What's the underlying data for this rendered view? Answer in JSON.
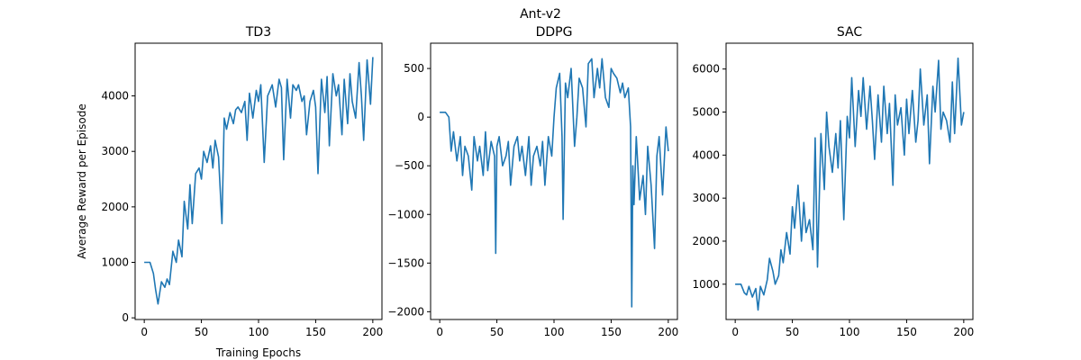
{
  "figure": {
    "suptitle": "Ant-v2"
  },
  "chart_data": [
    {
      "type": "line",
      "title": "TD3",
      "xlabel": "Training Epochs",
      "ylabel": "Average Reward per Episode",
      "xlim": [
        -8,
        208
      ],
      "ylim": [
        -30,
        4950
      ],
      "xticks": [
        0,
        50,
        100,
        150,
        200
      ],
      "yticks": [
        0,
        1000,
        2000,
        3000,
        4000
      ],
      "color": "#1f77b4",
      "series": [
        {
          "name": "TD3",
          "x": [
            0,
            5,
            8,
            10,
            12,
            15,
            18,
            20,
            22,
            25,
            28,
            30,
            33,
            35,
            38,
            40,
            42,
            45,
            48,
            50,
            52,
            55,
            58,
            60,
            62,
            65,
            68,
            70,
            72,
            75,
            78,
            80,
            82,
            85,
            88,
            90,
            92,
            95,
            98,
            100,
            102,
            105,
            108,
            110,
            112,
            115,
            118,
            120,
            122,
            125,
            128,
            130,
            133,
            135,
            138,
            140,
            142,
            145,
            148,
            150,
            152,
            155,
            158,
            160,
            162,
            165,
            168,
            170,
            173,
            175,
            178,
            180,
            182,
            185,
            188,
            190,
            192,
            195,
            198,
            200
          ],
          "values": [
            1000,
            1000,
            800,
            500,
            250,
            650,
            550,
            700,
            600,
            1200,
            1000,
            1400,
            1100,
            2100,
            1600,
            2400,
            1700,
            2600,
            2700,
            2500,
            3000,
            2800,
            3100,
            2700,
            3200,
            2900,
            1700,
            3600,
            3400,
            3700,
            3500,
            3750,
            3800,
            3700,
            3900,
            3200,
            4050,
            3600,
            4100,
            3900,
            4200,
            2800,
            4000,
            4100,
            4200,
            3800,
            4300,
            4150,
            2850,
            4300,
            3600,
            4200,
            4100,
            4200,
            3900,
            4000,
            3300,
            3900,
            4100,
            3800,
            2600,
            4300,
            3700,
            4350,
            3100,
            4400,
            4000,
            4200,
            3300,
            4300,
            3500,
            4400,
            3900,
            3600,
            4600,
            4000,
            3200,
            4650,
            3850,
            4700
          ]
        }
      ]
    },
    {
      "type": "line",
      "title": "DDPG",
      "xlabel": "",
      "ylabel": "",
      "xlim": [
        -8,
        208
      ],
      "ylim": [
        -2080,
        760
      ],
      "xticks": [
        0,
        50,
        100,
        150,
        200
      ],
      "yticks": [
        500,
        0,
        -500,
        -1000,
        -1500,
        -2000
      ],
      "color": "#1f77b4",
      "series": [
        {
          "name": "DDPG",
          "x": [
            0,
            5,
            8,
            10,
            12,
            15,
            18,
            20,
            22,
            25,
            28,
            30,
            33,
            35,
            38,
            40,
            42,
            45,
            48,
            49,
            50,
            52,
            55,
            58,
            60,
            62,
            65,
            68,
            70,
            72,
            75,
            78,
            80,
            82,
            85,
            88,
            90,
            92,
            95,
            98,
            100,
            102,
            105,
            107,
            108,
            110,
            112,
            115,
            118,
            120,
            122,
            125,
            128,
            130,
            133,
            135,
            138,
            140,
            142,
            145,
            148,
            150,
            152,
            155,
            158,
            160,
            162,
            165,
            167,
            168,
            169,
            170,
            172,
            175,
            178,
            180,
            182,
            185,
            188,
            190,
            192,
            195,
            198,
            200
          ],
          "values": [
            50,
            50,
            0,
            -350,
            -150,
            -450,
            -200,
            -600,
            -300,
            -400,
            -750,
            -200,
            -450,
            -300,
            -600,
            -150,
            -550,
            -250,
            -400,
            -1400,
            -300,
            -200,
            -500,
            -400,
            -250,
            -700,
            -300,
            -200,
            -450,
            -300,
            -600,
            -200,
            -700,
            -400,
            -300,
            -500,
            -250,
            -700,
            -200,
            -400,
            0,
            300,
            450,
            -200,
            -1050,
            350,
            200,
            500,
            -300,
            0,
            400,
            300,
            -100,
            550,
            600,
            200,
            500,
            300,
            600,
            200,
            100,
            500,
            450,
            400,
            250,
            350,
            200,
            300,
            -100,
            -1950,
            -500,
            -900,
            -200,
            -850,
            -600,
            -1000,
            -300,
            -700,
            -1350,
            -400,
            -200,
            -800,
            -100,
            -350
          ]
        }
      ]
    },
    {
      "type": "line",
      "title": "SAC",
      "xlabel": "",
      "ylabel": "",
      "xlim": [
        -8,
        208
      ],
      "ylim": [
        180,
        6600
      ],
      "xticks": [
        0,
        50,
        100,
        150,
        200
      ],
      "yticks": [
        1000,
        2000,
        3000,
        4000,
        5000,
        6000
      ],
      "color": "#1f77b4",
      "series": [
        {
          "name": "SAC",
          "x": [
            0,
            5,
            8,
            10,
            12,
            15,
            18,
            20,
            22,
            25,
            28,
            30,
            33,
            35,
            38,
            40,
            42,
            45,
            48,
            50,
            52,
            55,
            58,
            60,
            62,
            65,
            68,
            70,
            72,
            75,
            78,
            80,
            82,
            85,
            88,
            90,
            92,
            95,
            98,
            100,
            102,
            105,
            108,
            110,
            112,
            115,
            118,
            120,
            122,
            125,
            128,
            130,
            133,
            135,
            138,
            140,
            142,
            145,
            148,
            150,
            152,
            155,
            158,
            160,
            162,
            165,
            168,
            170,
            173,
            175,
            178,
            180,
            182,
            185,
            188,
            190,
            192,
            195,
            198,
            200
          ],
          "values": [
            1000,
            1000,
            800,
            750,
            950,
            700,
            900,
            400,
            950,
            750,
            1100,
            1600,
            1300,
            1000,
            1200,
            1800,
            1500,
            2200,
            1700,
            2800,
            2300,
            3300,
            2000,
            2900,
            2200,
            2500,
            1800,
            4400,
            1400,
            4500,
            3200,
            5000,
            4200,
            3600,
            4500,
            3700,
            4800,
            2500,
            4900,
            4400,
            5800,
            4200,
            5500,
            4900,
            5800,
            4600,
            5600,
            4800,
            3900,
            5400,
            4300,
            5600,
            4500,
            5200,
            3300,
            5400,
            4700,
            5100,
            4000,
            5300,
            4500,
            5500,
            4300,
            4800,
            6000,
            4700,
            5400,
            3800,
            5600,
            5000,
            6200,
            4600,
            5000,
            4800,
            4300,
            5700,
            4500,
            6250,
            4700,
            5000
          ]
        }
      ]
    }
  ]
}
